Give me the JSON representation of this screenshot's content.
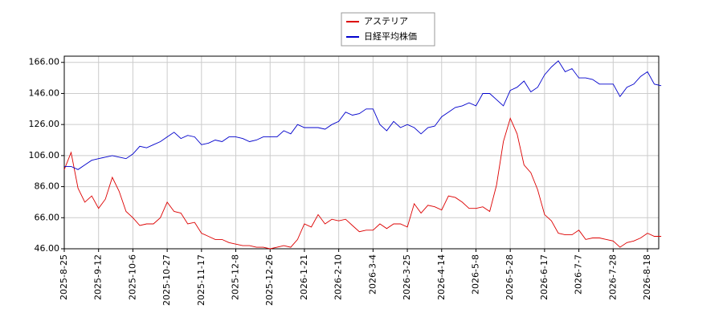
{
  "chart_data": {
    "type": "line",
    "categories": [
      "2025-8-25",
      null,
      null,
      null,
      null,
      "2025-9-12",
      null,
      null,
      null,
      null,
      "2025-10-6",
      null,
      null,
      null,
      null,
      "2025-10-27",
      null,
      null,
      null,
      null,
      "2025-11-17",
      null,
      null,
      null,
      null,
      "2025-12-8",
      null,
      null,
      null,
      null,
      "2025-12-26",
      null,
      null,
      null,
      null,
      "2026-1-21",
      null,
      null,
      null,
      null,
      "2026-2-10",
      null,
      null,
      null,
      null,
      "2026-3-4",
      null,
      null,
      null,
      null,
      "2026-3-25",
      null,
      null,
      null,
      null,
      "2026-4-14",
      null,
      null,
      null,
      null,
      "2026-5-8",
      null,
      null,
      null,
      null,
      "2026-5-28",
      null,
      null,
      null,
      null,
      "2026-6-17",
      null,
      null,
      null,
      null,
      "2026-7-7",
      null,
      null,
      null,
      null,
      "2026-7-28",
      null,
      null,
      null,
      null,
      "2026-8-18",
      null,
      null
    ],
    "series": [
      {
        "name": "アステリア",
        "color": "#dd0000",
        "values": [
          97,
          108,
          85,
          76,
          80,
          72,
          78,
          92,
          83,
          70,
          66,
          61,
          62,
          62,
          66,
          76,
          70,
          69,
          62,
          63,
          56,
          54,
          52,
          52,
          50,
          49,
          48,
          48,
          47,
          47,
          46,
          47,
          48,
          47,
          52,
          62,
          60,
          68,
          62,
          65,
          64,
          65,
          61,
          57,
          58,
          58,
          62,
          59,
          62,
          62,
          60,
          75,
          69,
          74,
          73,
          71,
          80,
          79,
          76,
          72,
          72,
          73,
          70,
          87,
          115,
          130,
          120,
          100,
          95,
          84,
          68,
          64,
          56,
          55,
          55,
          58,
          52,
          53,
          53,
          52,
          51,
          47,
          50,
          51,
          53,
          56,
          54,
          54
        ]
      },
      {
        "name": "日経平均株価",
        "color": "#0000cc",
        "values": [
          99,
          99,
          97,
          100,
          103,
          104,
          105,
          106,
          105,
          104,
          107,
          112,
          111,
          113,
          115,
          118,
          121,
          117,
          119,
          118,
          113,
          114,
          116,
          115,
          118,
          118,
          117,
          115,
          116,
          118,
          118,
          118,
          122,
          120,
          126,
          124,
          124,
          124,
          123,
          126,
          128,
          134,
          132,
          133,
          136,
          136,
          126,
          122,
          128,
          124,
          126,
          124,
          120,
          124,
          125,
          131,
          134,
          137,
          138,
          140,
          138,
          146,
          146,
          142,
          138,
          148,
          150,
          154,
          147,
          150,
          158,
          163,
          167,
          160,
          162,
          156,
          156,
          155,
          152,
          152,
          152,
          144,
          150,
          152,
          157,
          160,
          152,
          151
        ]
      }
    ],
    "ylim": [
      46,
      170
    ],
    "yticks": [
      {
        "value": 46,
        "label": "46.00"
      },
      {
        "value": 66,
        "label": "66.00"
      },
      {
        "value": 86,
        "label": "86.00"
      },
      {
        "value": 106,
        "label": "106.00"
      },
      {
        "value": 126,
        "label": "126.00"
      },
      {
        "value": 146,
        "label": "146.00"
      },
      {
        "value": 166,
        "label": "166.00"
      }
    ],
    "grid": true
  }
}
